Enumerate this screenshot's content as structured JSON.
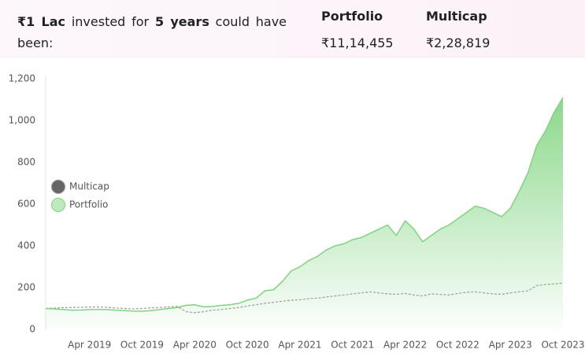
{
  "header": {
    "intro": [
      "₹1 Lac",
      "invested for",
      "5 years",
      "could have",
      "been:"
    ],
    "columns": [
      {
        "name": "Portfolio",
        "value": "₹11,14,455"
      },
      {
        "name": "Multicap",
        "value": "₹2,28,819"
      }
    ]
  },
  "chart_data": {
    "type": "line",
    "legend": "left",
    "grid": false,
    "categories": [
      null,
      null,
      null,
      null,
      null,
      "Apr 2019",
      null,
      null,
      null,
      null,
      null,
      "Oct 2019",
      null,
      null,
      null,
      null,
      null,
      "Apr 2020",
      null,
      null,
      null,
      null,
      null,
      "Oct 2020",
      null,
      null,
      null,
      null,
      null,
      "Apr 2021",
      null,
      null,
      null,
      null,
      null,
      "Oct 2021",
      null,
      null,
      null,
      null,
      null,
      "Apr 2022",
      null,
      null,
      null,
      null,
      null,
      "Oct 2022",
      null,
      null,
      null,
      null,
      null,
      "Apr 2023",
      null,
      null,
      null,
      null,
      null,
      "Oct 2023"
    ],
    "ylim": [
      0,
      1200
    ],
    "yticks": [
      0,
      200,
      400,
      600,
      800,
      {
        "value": 1000,
        "label": "1,000"
      },
      {
        "value": 1200,
        "label": "1,200"
      }
    ],
    "series": [
      {
        "name": "Multicap",
        "color": "#9a9a9a",
        "legend_color": "#666666",
        "dashed": true,
        "values": [
          100,
          102,
          104,
          105,
          106,
          107,
          108,
          106,
          102,
          100,
          98,
          100,
          103,
          105,
          108,
          110,
          85,
          80,
          85,
          92,
          95,
          100,
          105,
          112,
          118,
          125,
          130,
          135,
          140,
          142,
          148,
          150,
          155,
          160,
          165,
          170,
          175,
          180,
          175,
          170,
          168,
          172,
          165,
          160,
          170,
          168,
          165,
          172,
          178,
          180,
          175,
          170,
          168,
          175,
          180,
          185,
          210,
          215,
          218,
          222
        ]
      },
      {
        "name": "Portfolio",
        "color": "#7fd47f",
        "legend_color": "#bdeabd",
        "area": true,
        "values": [
          100,
          98,
          95,
          92,
          93,
          95,
          96,
          95,
          92,
          90,
          88,
          87,
          90,
          95,
          100,
          105,
          115,
          118,
          108,
          110,
          115,
          118,
          125,
          140,
          150,
          185,
          190,
          230,
          280,
          300,
          330,
          350,
          380,
          400,
          410,
          430,
          440,
          460,
          480,
          500,
          450,
          520,
          480,
          420,
          450,
          480,
          500,
          530,
          560,
          590,
          580,
          560,
          540,
          580,
          660,
          750,
          880,
          950,
          1040,
          1110
        ]
      }
    ]
  }
}
